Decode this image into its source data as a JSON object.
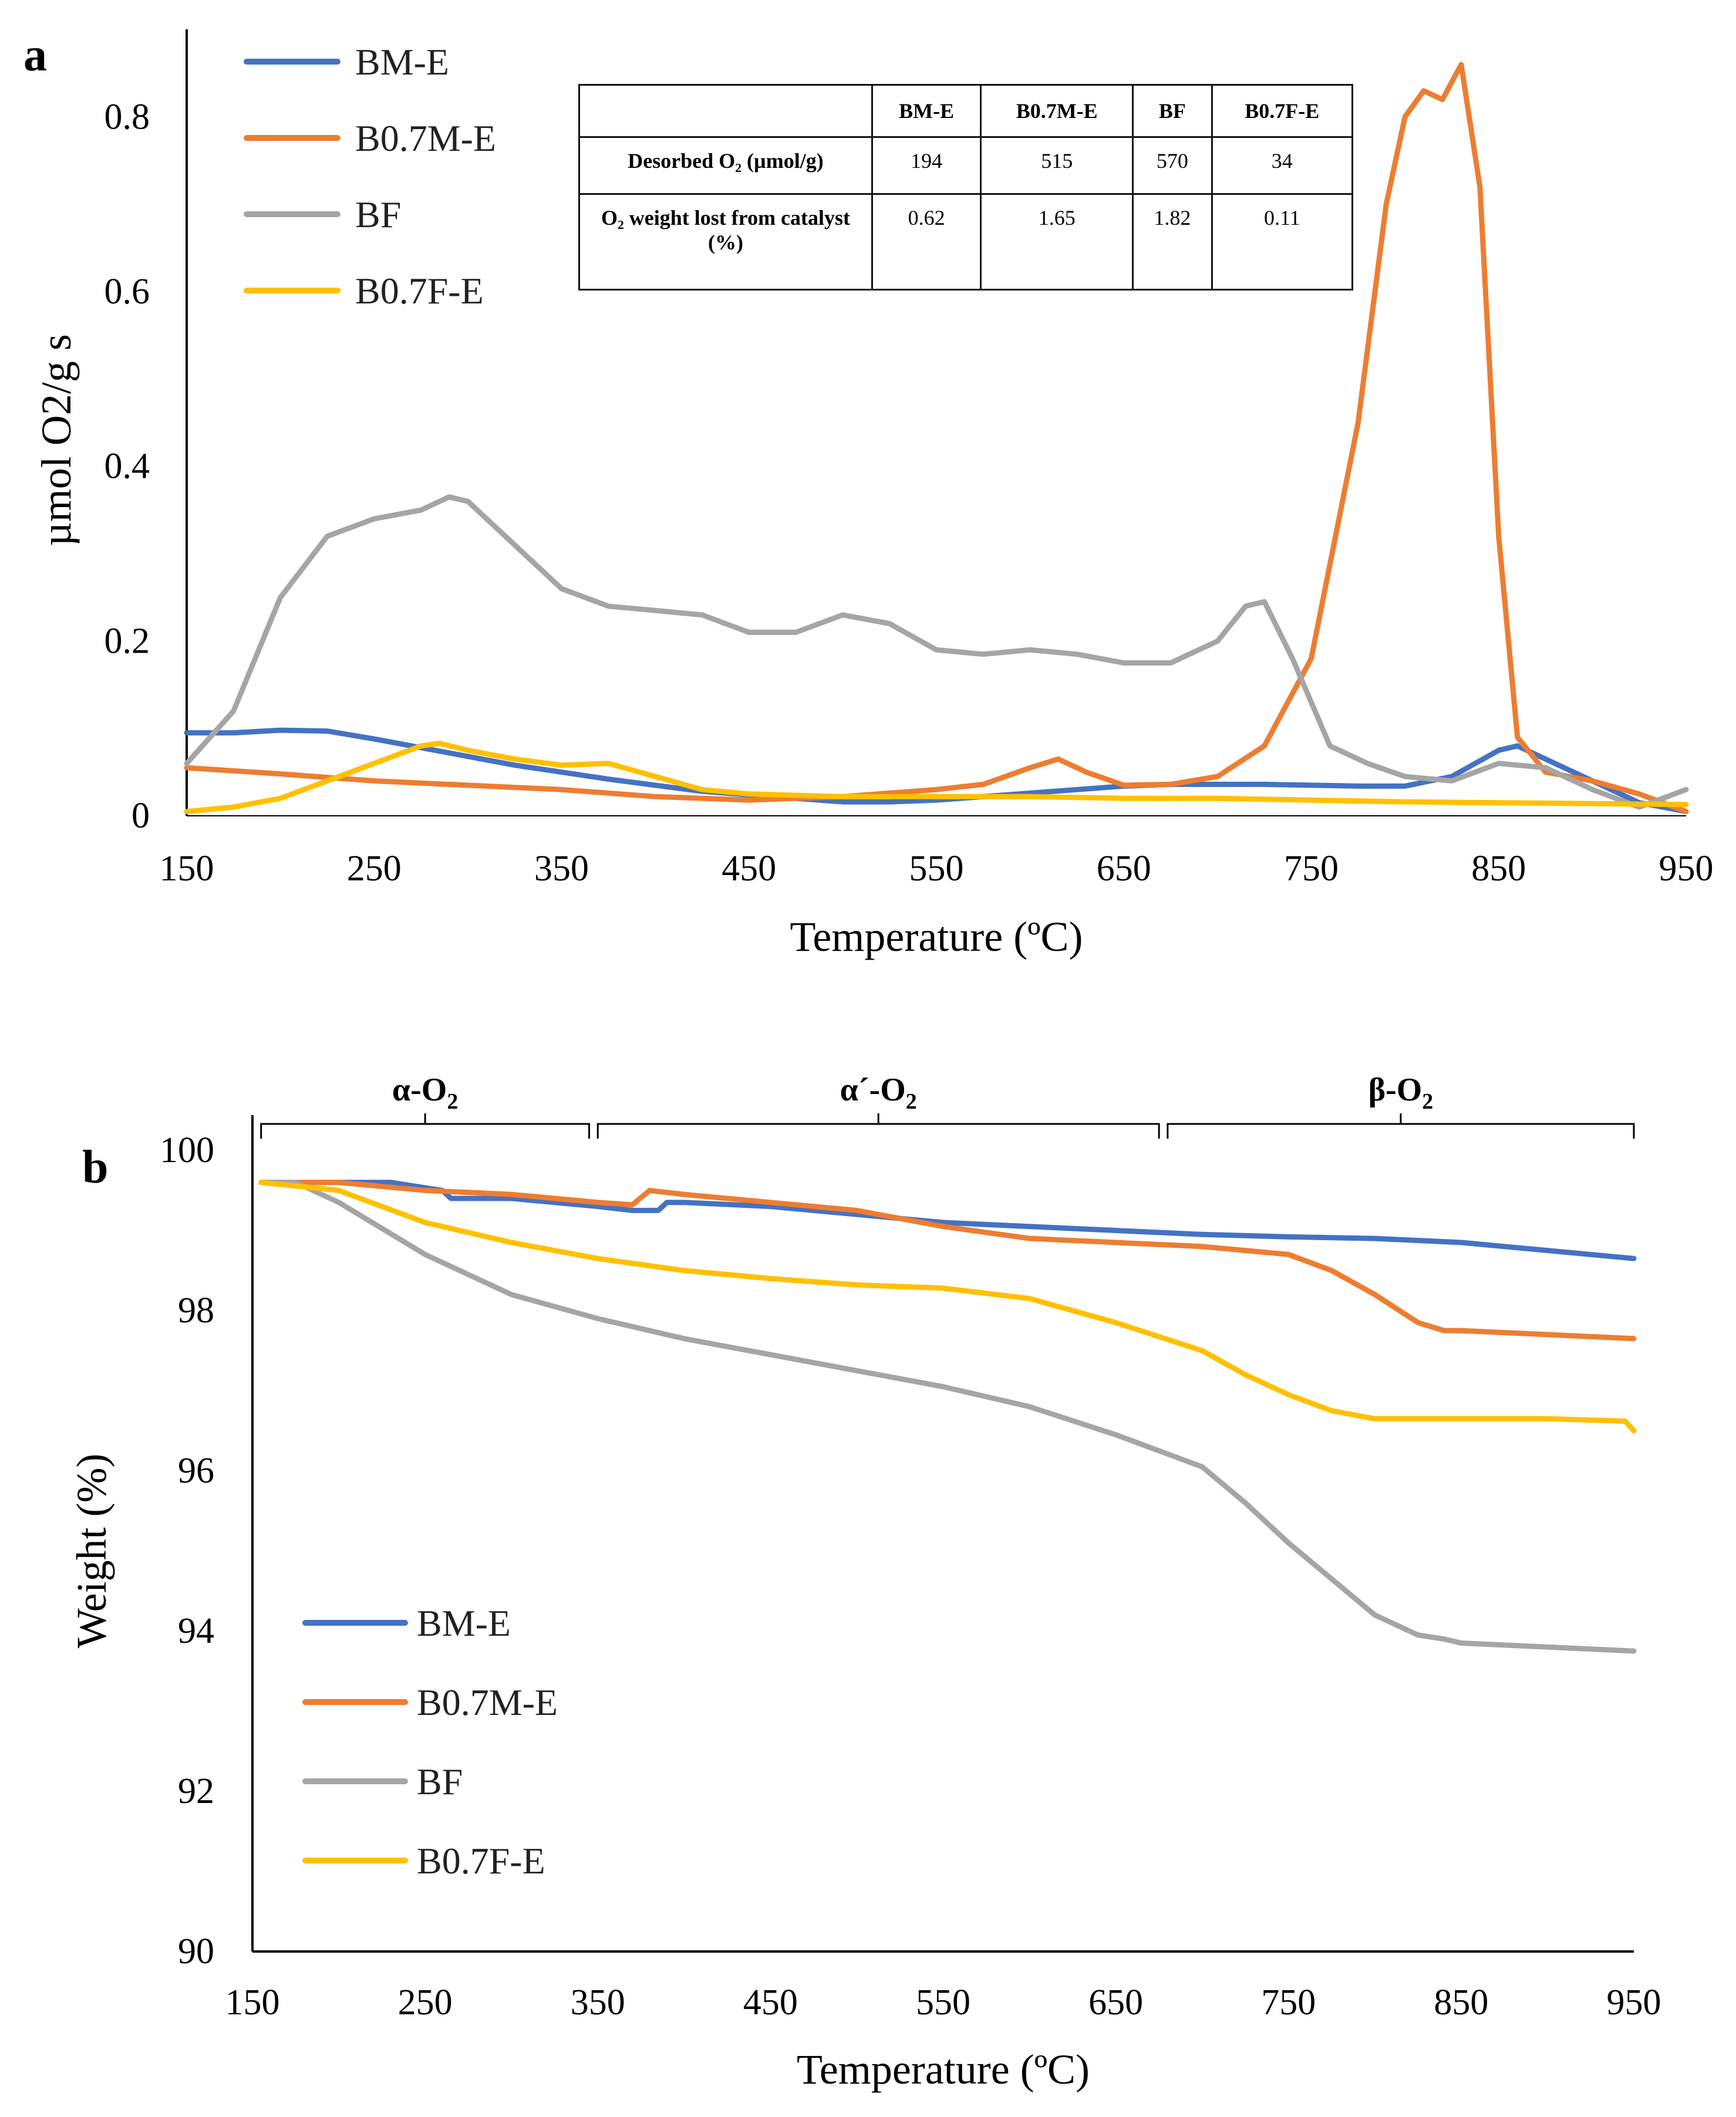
{
  "chart_data": [
    {
      "type": "line",
      "panel_label": "a",
      "title": "",
      "xlabel": "Temperature (ºC)",
      "ylabel": "µmol O2/g s",
      "xlim": [
        150,
        950
      ],
      "ylim": [
        0,
        0.86
      ],
      "xticks": [
        "150",
        "250",
        "350",
        "450",
        "550",
        "650",
        "750",
        "850",
        "950"
      ],
      "yticks": [
        "0",
        "0.2",
        "0.4",
        "0.6",
        "0.8"
      ],
      "legend_position": "top-left",
      "series": [
        {
          "name": "BM-E",
          "color": "#4472C4",
          "x": [
            150,
            175,
            200,
            225,
            250,
            275,
            300,
            325,
            350,
            375,
            400,
            425,
            450,
            475,
            500,
            525,
            550,
            575,
            600,
            625,
            650,
            675,
            700,
            725,
            750,
            775,
            800,
            825,
            850,
            860,
            875,
            900,
            925,
            950
          ],
          "y": [
            0.095,
            0.095,
            0.098,
            0.097,
            0.088,
            0.078,
            0.068,
            0.058,
            0.05,
            0.042,
            0.035,
            0.028,
            0.024,
            0.02,
            0.016,
            0.016,
            0.018,
            0.022,
            0.026,
            0.03,
            0.034,
            0.036,
            0.036,
            0.036,
            0.035,
            0.034,
            0.034,
            0.045,
            0.075,
            0.08,
            0.065,
            0.04,
            0.015,
            0.005
          ]
        },
        {
          "name": "B0.7M-E",
          "color": "#ED7D31",
          "x": [
            150,
            200,
            250,
            300,
            350,
            400,
            450,
            500,
            550,
            575,
            600,
            615,
            630,
            650,
            675,
            700,
            725,
            750,
            775,
            790,
            800,
            810,
            820,
            830,
            840,
            850,
            860,
            875,
            900,
            925,
            950
          ],
          "y": [
            0.055,
            0.048,
            0.04,
            0.035,
            0.03,
            0.022,
            0.018,
            0.022,
            0.03,
            0.036,
            0.055,
            0.065,
            0.05,
            0.035,
            0.036,
            0.045,
            0.08,
            0.18,
            0.45,
            0.7,
            0.8,
            0.83,
            0.82,
            0.86,
            0.72,
            0.32,
            0.09,
            0.05,
            0.04,
            0.025,
            0.005
          ]
        },
        {
          "name": "BF",
          "color": "#A5A5A5",
          "x": [
            150,
            175,
            200,
            225,
            250,
            275,
            290,
            300,
            325,
            350,
            375,
            400,
            425,
            450,
            475,
            500,
            525,
            550,
            575,
            600,
            625,
            650,
            675,
            700,
            715,
            725,
            740,
            760,
            780,
            800,
            825,
            850,
            875,
            900,
            925,
            950
          ],
          "y": [
            0.06,
            0.12,
            0.25,
            0.32,
            0.34,
            0.35,
            0.365,
            0.36,
            0.31,
            0.26,
            0.24,
            0.235,
            0.23,
            0.21,
            0.21,
            0.23,
            0.22,
            0.19,
            0.185,
            0.19,
            0.185,
            0.175,
            0.175,
            0.2,
            0.24,
            0.245,
            0.18,
            0.08,
            0.06,
            0.045,
            0.04,
            0.06,
            0.055,
            0.03,
            0.01,
            0.03
          ]
        },
        {
          "name": "B0.7F-E",
          "color": "#FFC000",
          "x": [
            150,
            175,
            200,
            225,
            250,
            275,
            285,
            300,
            325,
            350,
            375,
            400,
            425,
            450,
            500,
            550,
            600,
            650,
            700,
            750,
            800,
            850,
            900,
            950
          ],
          "y": [
            0.005,
            0.01,
            0.02,
            0.04,
            0.06,
            0.08,
            0.083,
            0.075,
            0.065,
            0.058,
            0.06,
            0.045,
            0.03,
            0.025,
            0.022,
            0.022,
            0.022,
            0.02,
            0.02,
            0.018,
            0.016,
            0.015,
            0.014,
            0.013
          ]
        }
      ]
    },
    {
      "type": "line",
      "panel_label": "b",
      "title": "",
      "xlabel": "Temperature (ºC)",
      "ylabel": "Weight (%)",
      "xlim": [
        150,
        950
      ],
      "ylim": [
        90,
        100
      ],
      "xticks": [
        "150",
        "250",
        "350",
        "450",
        "550",
        "650",
        "750",
        "850",
        "950"
      ],
      "yticks": [
        "90",
        "92",
        "94",
        "96",
        "98",
        "100"
      ],
      "legend_position": "bottom-left",
      "region_labels": [
        {
          "label": "α-O",
          "sub": "2",
          "range": [
            155,
            345
          ]
        },
        {
          "label": "α´-O",
          "sub": "2",
          "range": [
            350,
            675
          ]
        },
        {
          "label": "β-O",
          "sub": "2",
          "range": [
            680,
            950
          ]
        }
      ],
      "series": [
        {
          "name": "BM-E",
          "color": "#4472C4",
          "x": [
            155,
            200,
            230,
            260,
            265,
            300,
            350,
            370,
            385,
            390,
            400,
            450,
            500,
            550,
            600,
            650,
            700,
            750,
            800,
            850,
            900,
            950
          ],
          "y": [
            99.6,
            99.6,
            99.6,
            99.5,
            99.4,
            99.4,
            99.3,
            99.25,
            99.25,
            99.35,
            99.35,
            99.3,
            99.2,
            99.1,
            99.05,
            99.0,
            98.95,
            98.92,
            98.9,
            98.85,
            98.75,
            98.65
          ]
        },
        {
          "name": "B0.7M-E",
          "color": "#ED7D31",
          "x": [
            155,
            200,
            250,
            300,
            350,
            370,
            380,
            400,
            450,
            500,
            550,
            600,
            650,
            700,
            750,
            775,
            800,
            825,
            840,
            850,
            900,
            950
          ],
          "y": [
            99.6,
            99.6,
            99.5,
            99.45,
            99.35,
            99.32,
            99.5,
            99.45,
            99.35,
            99.25,
            99.05,
            98.9,
            98.85,
            98.8,
            98.7,
            98.5,
            98.2,
            97.85,
            97.75,
            97.75,
            97.7,
            97.65
          ]
        },
        {
          "name": "BF",
          "color": "#A5A5A5",
          "x": [
            155,
            175,
            200,
            250,
            300,
            350,
            400,
            450,
            500,
            550,
            600,
            650,
            700,
            725,
            750,
            775,
            800,
            825,
            840,
            850,
            900,
            950
          ],
          "y": [
            99.6,
            99.6,
            99.35,
            98.7,
            98.2,
            97.9,
            97.65,
            97.45,
            97.25,
            97.05,
            96.8,
            96.45,
            96.05,
            95.6,
            95.1,
            94.65,
            94.2,
            93.95,
            93.9,
            93.85,
            93.8,
            93.75
          ]
        },
        {
          "name": "B0.7F-E",
          "color": "#FFC000",
          "x": [
            155,
            200,
            250,
            300,
            350,
            400,
            450,
            500,
            550,
            600,
            650,
            700,
            725,
            750,
            775,
            800,
            840,
            850,
            900,
            945,
            950
          ],
          "y": [
            99.6,
            99.5,
            99.1,
            98.85,
            98.65,
            98.5,
            98.4,
            98.32,
            98.28,
            98.15,
            97.85,
            97.5,
            97.2,
            96.95,
            96.75,
            96.65,
            96.65,
            96.65,
            96.65,
            96.62,
            96.5
          ]
        }
      ]
    }
  ],
  "table": {
    "headers": [
      "",
      "BM-E",
      "B0.7M-E",
      "BF",
      "B0.7F-E"
    ],
    "rows": [
      {
        "label": "Desorbed O₂ (µmol/g)",
        "values": [
          "194",
          "515",
          "570",
          "34"
        ]
      },
      {
        "label": "O₂ weight lost from catalyst (%)",
        "values": [
          "0.62",
          "1.65",
          "1.82",
          "0.11"
        ]
      }
    ]
  }
}
